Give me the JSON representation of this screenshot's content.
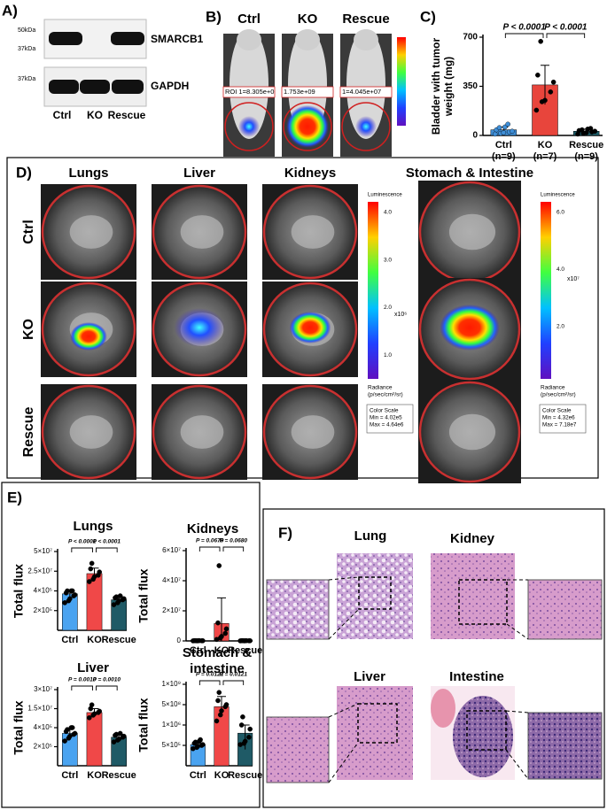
{
  "figure": {
    "panel_labels": [
      "A)",
      "B)",
      "C)",
      "D)",
      "E)",
      "F)"
    ],
    "blot": {
      "markers": [
        "50kDa",
        "37kDa",
        "37kDa"
      ],
      "proteins": [
        "SMARCB1",
        "GAPDH"
      ],
      "lanes": [
        "Ctrl",
        "KO",
        "Rescue"
      ]
    },
    "imaging": {
      "groups": [
        "Ctrl",
        "KO",
        "Rescue"
      ],
      "roi_labels": [
        "ROI 1=8.305e+0",
        "1.753e+09",
        "1=4.045e+07"
      ]
    },
    "organs": {
      "columns": [
        "Lungs",
        "Liver",
        "Kidneys",
        "Stomach & Intestine"
      ],
      "rows": [
        "Ctrl",
        "KO",
        "Rescue"
      ],
      "scales": [
        {
          "title": "Luminescence",
          "ticks": [
            "4.0",
            "3.0",
            "2.0",
            "1.0"
          ],
          "multiplier": "x10⁶",
          "unit": "Radiance",
          "unit_detail": "(p/sec/cm²/sr)",
          "box": [
            "Color Scale",
            "Min = 4.02e5",
            "Max = 4.64e6"
          ]
        },
        {
          "title": "Luminescence",
          "ticks": [
            "6.0",
            "4.0",
            "2.0"
          ],
          "multiplier": "x10⁷",
          "unit": "Radiance",
          "unit_detail": "(p/sec/cm²/sr)",
          "box": [
            "Color Scale",
            "Min = 4.32e6",
            "Max = 7.18e7"
          ]
        }
      ]
    },
    "histology": {
      "labels": [
        "Lung",
        "Kidney",
        "Liver",
        "Intestine"
      ]
    }
  },
  "chart_data": [
    {
      "type": "bar",
      "y_label": [
        "Bladder with tumor",
        "weight (mg)"
      ],
      "categories": [
        "Ctrl",
        "KO",
        "Rescue"
      ],
      "category_notes": [
        "(n=9)",
        "(n=7)",
        "(n=9)"
      ],
      "colors": [
        "#3f8fd8",
        "#e8453c",
        "#1f5f6b"
      ],
      "values": [
        40,
        360,
        30
      ],
      "errors": [
        20,
        140,
        15
      ],
      "points": [
        [
          10,
          15,
          20,
          25,
          30,
          40,
          55,
          60,
          80
        ],
        [
          180,
          240,
          250,
          310,
          380,
          430,
          670
        ],
        [
          10,
          15,
          20,
          25,
          30,
          35,
          40,
          45,
          50
        ]
      ],
      "ylim": [
        0,
        700
      ],
      "yticks": [
        0,
        350,
        700
      ],
      "scale": "linear",
      "p_values": [
        "P < 0.0001",
        "P < 0.0001"
      ]
    },
    {
      "type": "bar",
      "title": [
        "Lungs"
      ],
      "y_label": [
        "Total flux"
      ],
      "categories": [
        "Ctrl",
        "KO",
        "Rescue"
      ],
      "colors": [
        "#4aa3f0",
        "#f04848",
        "#1f5a66"
      ],
      "values": [
        370000,
        22000000,
        310000
      ],
      "errors": [
        50000,
        7000000,
        30000
      ],
      "points": [
        [
          280000,
          300000,
          320000,
          350000,
          360000,
          380000,
          400000,
          430000,
          450000
        ],
        [
          12000000,
          15000000,
          18000000,
          20000000,
          24000000,
          28000000,
          35000000
        ],
        [
          260000,
          280000,
          300000,
          310000,
          320000,
          330000,
          340000,
          350000
        ]
      ],
      "ylim": [
        0,
        50000000
      ],
      "yticks": [
        {
          "value": 200000,
          "label": "2×10⁵"
        },
        {
          "value": 400000,
          "label": "4×10⁵"
        },
        {
          "value": 25000000,
          "label": "2.5×10⁷"
        },
        {
          "value": 50000000,
          "label": "5×10⁷"
        }
      ],
      "scale": "segmented",
      "p_values": [
        "P < 0.0001",
        "P < 0.0001"
      ]
    },
    {
      "type": "bar",
      "title": [
        "Kidneys"
      ],
      "y_label": [
        "Total flux"
      ],
      "categories": [
        "Ctrl",
        "KO",
        "Rescue"
      ],
      "colors": [
        "#4aa3f0",
        "#f04848",
        "#1f5a66"
      ],
      "values": [
        120000,
        11600000,
        110000
      ],
      "errors": [
        50000,
        17000000,
        50000
      ],
      "points": [
        [
          50000,
          80000,
          100000,
          100000,
          120000,
          150000,
          150000,
          200000
        ],
        [
          1000000,
          2000000,
          3000000,
          5000000,
          8000000,
          12000000,
          50000000
        ],
        [
          50000,
          70000,
          100000,
          100000,
          120000,
          140000,
          150000,
          180000
        ]
      ],
      "ylim": [
        0,
        60000000
      ],
      "yticks": [
        0,
        {
          "value": 20000000,
          "label": "2×10⁷"
        },
        {
          "value": 40000000,
          "label": "4×10⁷"
        },
        {
          "value": 60000000,
          "label": "6×10⁷"
        }
      ],
      "scale": "linear",
      "p_values": [
        "P = 0.0679",
        "P = 0.0680"
      ]
    },
    {
      "type": "bar",
      "title": [
        "Liver"
      ],
      "y_label": [
        "Total flux"
      ],
      "categories": [
        "Ctrl",
        "KO",
        "Rescue"
      ],
      "colors": [
        "#4aa3f0",
        "#f04848",
        "#1f5a66"
      ],
      "values": [
        340000,
        12000000,
        300000
      ],
      "errors": [
        50000,
        3000000,
        30000
      ],
      "points": [
        [
          260000,
          290000,
          310000,
          330000,
          340000,
          360000,
          380000,
          400000,
          420000
        ],
        [
          8000000,
          10000000,
          11000000,
          12000000,
          13000000,
          15000000,
          18000000
        ],
        [
          250000,
          270000,
          280000,
          300000,
          310000,
          320000,
          330000,
          340000
        ]
      ],
      "ylim": [
        0,
        30000000
      ],
      "yticks": [
        {
          "value": 200000,
          "label": "2×10⁵"
        },
        {
          "value": 400000,
          "label": "4×10⁵"
        },
        {
          "value": 15000000,
          "label": "1.5×10⁷"
        },
        {
          "value": 30000000,
          "label": "3×10⁷"
        }
      ],
      "scale": "segmented",
      "p_values": [
        "P = 0.0010",
        "P = 0.0010"
      ]
    },
    {
      "type": "bar",
      "title": [
        "Stomach &",
        "intestine"
      ],
      "y_label": [
        "Total flux"
      ],
      "categories": [
        "Ctrl",
        "KO",
        "Rescue"
      ],
      "colors": [
        "#4aa3f0",
        "#f04848",
        "#1f5a66"
      ],
      "values": [
        520000,
        450000000,
        800000
      ],
      "errors": [
        80000,
        250000000,
        400000
      ],
      "points": [
        [
          420000,
          450000,
          480000,
          500000,
          520000,
          550000,
          580000,
          600000,
          640000
        ],
        [
          100000000,
          250000000,
          350000000,
          450000000,
          500000000,
          600000000,
          800000000
        ],
        [
          520000,
          550000,
          600000,
          700000,
          900000,
          1000000,
          200000000
        ]
      ],
      "ylim": [
        0,
        1000000000
      ],
      "yticks": [
        {
          "value": 500000,
          "label": "5×10⁵"
        },
        {
          "value": 1000000,
          "label": "1×10⁶"
        },
        {
          "value": 500000000,
          "label": "5×10⁸"
        },
        {
          "value": 1000000000,
          "label": "1×10⁹"
        }
      ],
      "scale": "segmented",
      "p_values": [
        "P = 0.0121",
        "P = 0.0121"
      ]
    }
  ]
}
